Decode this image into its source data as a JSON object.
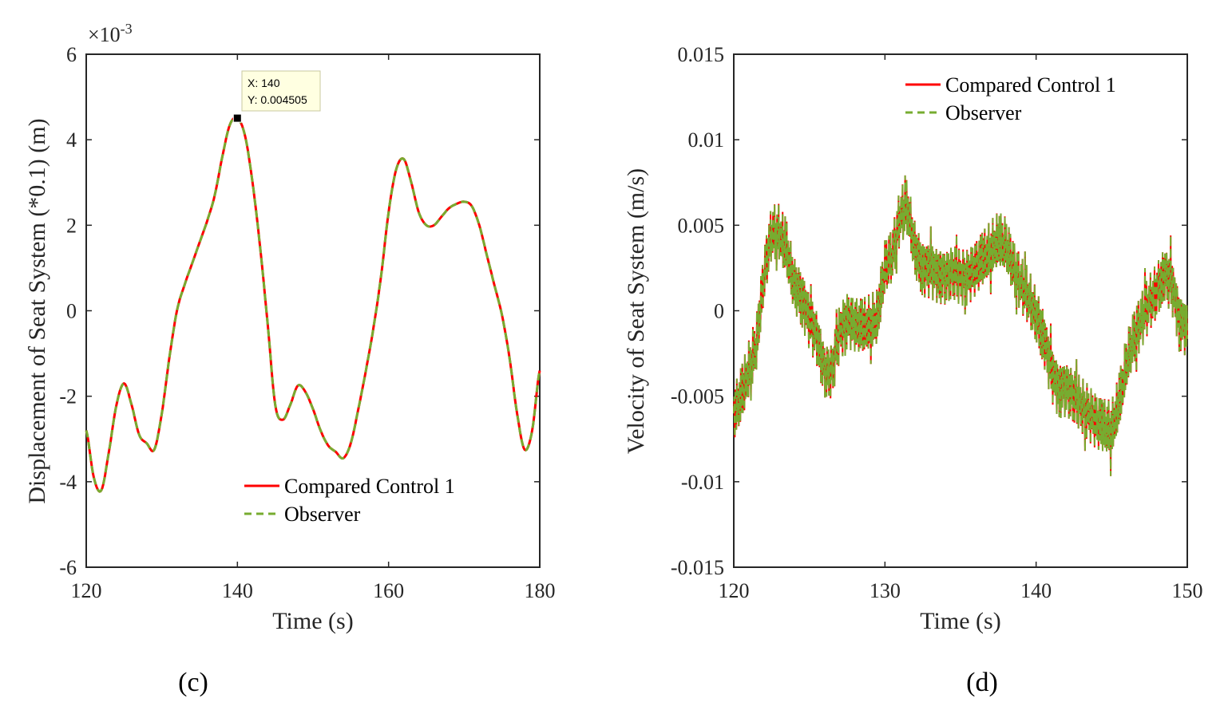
{
  "chart_data": [
    {
      "type": "line",
      "xlabel": "Time (s)",
      "ylabel": "Displacement of Seat System (*0.1) (m)",
      "exponent_label": "×10",
      "exponent_power": "-3",
      "xlim": [
        120,
        180
      ],
      "ylim": [
        -6,
        6
      ],
      "xticks": [
        "120",
        "140",
        "160",
        "180"
      ],
      "yticks": [
        "-6",
        "-4",
        "-2",
        "0",
        "2",
        "4",
        "6"
      ],
      "x": [
        120,
        121,
        122,
        123,
        124,
        125,
        126,
        127,
        128,
        129,
        130,
        131,
        132,
        133,
        134,
        135,
        136,
        137,
        138,
        139,
        140,
        141,
        142,
        143,
        144,
        145,
        146,
        147,
        148,
        149,
        150,
        151,
        152,
        153,
        154,
        155,
        156,
        157,
        158,
        159,
        160,
        161,
        162,
        163,
        164,
        165,
        166,
        167,
        168,
        169,
        170,
        171,
        172,
        173,
        174,
        175,
        176,
        177,
        178,
        179,
        180
      ],
      "series": [
        {
          "name": "Compared Control 1",
          "color": "#ff0000",
          "style": "solid",
          "values": [
            -2.8,
            -3.9,
            -4.2,
            -3.3,
            -2.2,
            -1.7,
            -2.2,
            -2.9,
            -3.1,
            -3.25,
            -2.4,
            -1.1,
            0.0,
            0.6,
            1.1,
            1.6,
            2.1,
            2.7,
            3.6,
            4.35,
            4.5,
            4.1,
            3.0,
            1.5,
            -0.3,
            -2.2,
            -2.55,
            -2.2,
            -1.75,
            -1.9,
            -2.3,
            -2.8,
            -3.15,
            -3.3,
            -3.45,
            -3.1,
            -2.3,
            -1.4,
            -0.4,
            0.8,
            2.3,
            3.3,
            3.55,
            3.0,
            2.3,
            2.0,
            2.0,
            2.2,
            2.4,
            2.5,
            2.55,
            2.45,
            2.0,
            1.3,
            0.6,
            -0.1,
            -1.1,
            -2.4,
            -3.25,
            -2.8,
            -1.4
          ]
        },
        {
          "name": "Observer",
          "color": "#77ac30",
          "style": "dashed",
          "values": [
            -2.8,
            -3.9,
            -4.2,
            -3.3,
            -2.2,
            -1.7,
            -2.2,
            -2.9,
            -3.1,
            -3.25,
            -2.4,
            -1.1,
            0.0,
            0.6,
            1.1,
            1.6,
            2.1,
            2.7,
            3.6,
            4.35,
            4.5,
            4.1,
            3.0,
            1.5,
            -0.3,
            -2.2,
            -2.55,
            -2.2,
            -1.75,
            -1.9,
            -2.3,
            -2.8,
            -3.15,
            -3.3,
            -3.45,
            -3.1,
            -2.3,
            -1.4,
            -0.4,
            0.8,
            2.3,
            3.3,
            3.55,
            3.0,
            2.3,
            2.0,
            2.0,
            2.2,
            2.4,
            2.5,
            2.55,
            2.45,
            2.0,
            1.3,
            0.6,
            -0.1,
            -1.1,
            -2.4,
            -3.25,
            -2.8,
            -1.4
          ]
        }
      ],
      "datatip": {
        "x": 140,
        "y": 4.505,
        "line1": "X: 140",
        "line2": "Y: 0.004505"
      },
      "legend_position": "bottom-center",
      "panel_label": "(c)"
    },
    {
      "type": "line",
      "xlabel": "Time (s)",
      "ylabel": "Velocity of Seat System (m/s)",
      "xlim": [
        120,
        150
      ],
      "ylim": [
        -0.015,
        0.015
      ],
      "xticks": [
        "120",
        "130",
        "140",
        "150"
      ],
      "yticks": [
        "-0.015",
        "-0.01",
        "-0.005",
        "0",
        "0.005",
        "0.01",
        "0.015"
      ],
      "x": [
        120,
        120.5,
        121,
        121.5,
        122,
        122.5,
        123,
        123.5,
        124,
        124.5,
        125,
        125.5,
        126,
        126.5,
        127,
        127.5,
        128,
        128.5,
        129,
        129.5,
        130,
        130.5,
        131,
        131.5,
        132,
        132.5,
        133,
        133.5,
        134,
        134.5,
        135,
        135.5,
        136,
        136.5,
        137,
        137.5,
        138,
        138.5,
        139,
        139.5,
        140,
        140.5,
        141,
        141.5,
        142,
        142.5,
        143,
        143.5,
        144,
        144.5,
        145,
        145.5,
        146,
        146.5,
        147,
        147.5,
        148,
        148.5,
        149,
        149.5,
        150
      ],
      "spike_amplitude": 0.0018,
      "series": [
        {
          "name": "Compared Control 1",
          "color": "#ff0000",
          "style": "solid",
          "values": [
            -0.006,
            -0.005,
            -0.0035,
            -0.002,
            0.002,
            0.0045,
            0.0045,
            0.0035,
            0.0015,
            0.0008,
            -0.0005,
            -0.0015,
            -0.0035,
            -0.0035,
            -0.0012,
            -0.0005,
            -0.0008,
            -0.001,
            -0.0008,
            -0.0005,
            0.0025,
            0.0032,
            0.0055,
            0.006,
            0.0035,
            0.0025,
            0.0025,
            0.0022,
            0.002,
            0.0023,
            0.002,
            0.002,
            0.0025,
            0.003,
            0.0035,
            0.004,
            0.0038,
            0.0025,
            0.0015,
            0.0008,
            -0.0003,
            -0.0015,
            -0.0035,
            -0.0045,
            -0.0045,
            -0.005,
            -0.0055,
            -0.006,
            -0.0065,
            -0.0068,
            -0.007,
            -0.0055,
            -0.003,
            -0.0015,
            -0.0005,
            0.0005,
            0.0012,
            0.0022,
            0.0015,
            -0.0005,
            -0.001
          ]
        },
        {
          "name": "Observer",
          "color": "#77ac30",
          "style": "dashed",
          "values": [
            -0.006,
            -0.005,
            -0.0035,
            -0.002,
            0.002,
            0.0045,
            0.0045,
            0.0035,
            0.0015,
            0.0008,
            -0.0005,
            -0.0015,
            -0.0035,
            -0.0035,
            -0.0012,
            -0.0005,
            -0.0008,
            -0.001,
            -0.0008,
            -0.0005,
            0.0025,
            0.0032,
            0.0055,
            0.006,
            0.0035,
            0.0025,
            0.0025,
            0.0022,
            0.002,
            0.0023,
            0.002,
            0.002,
            0.0025,
            0.003,
            0.0035,
            0.004,
            0.0038,
            0.0025,
            0.0015,
            0.0008,
            -0.0003,
            -0.0015,
            -0.0035,
            -0.0045,
            -0.0045,
            -0.005,
            -0.0055,
            -0.006,
            -0.0065,
            -0.0068,
            -0.007,
            -0.0055,
            -0.003,
            -0.0015,
            -0.0005,
            0.0005,
            0.0012,
            0.0022,
            0.0015,
            -0.0005,
            -0.001
          ]
        }
      ],
      "legend_position": "top-center",
      "panel_label": "(d)"
    }
  ]
}
